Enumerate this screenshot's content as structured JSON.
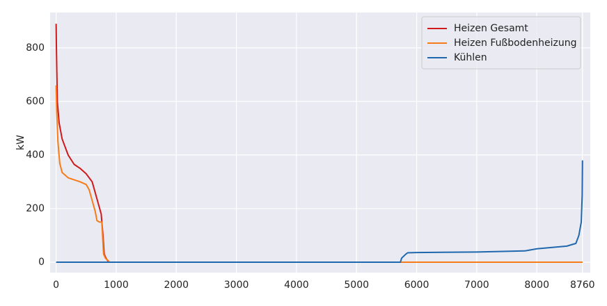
{
  "chart_data": {
    "type": "line",
    "ylabel": "kW",
    "xlim": [
      -100,
      8890
    ],
    "ylim": [
      -39,
      932
    ],
    "xticks": [
      0,
      1000,
      2000,
      3000,
      4000,
      5000,
      6000,
      7000,
      8000,
      8760
    ],
    "yticks": [
      0,
      200,
      400,
      600,
      800
    ],
    "grid": true,
    "legend": "upper right",
    "series": [
      {
        "name": "Heizen Gesamt",
        "color": "#d0191a",
        "x": [
          0,
          5,
          20,
          50,
          100,
          150,
          200,
          300,
          400,
          500,
          600,
          650,
          700,
          750,
          780,
          800,
          830,
          860,
          880,
          8760
        ],
        "values": [
          890,
          800,
          600,
          520,
          460,
          430,
          400,
          365,
          350,
          330,
          300,
          260,
          220,
          180,
          100,
          30,
          15,
          5,
          0,
          0
        ]
      },
      {
        "name": "Heizen Fußbodenheizung",
        "color": "#f77b18",
        "x": [
          0,
          10,
          30,
          60,
          100,
          200,
          400,
          500,
          550,
          600,
          650,
          680,
          720,
          760,
          790,
          820,
          870,
          880,
          8760
        ],
        "values": [
          660,
          560,
          450,
          370,
          335,
          315,
          300,
          290,
          270,
          230,
          190,
          155,
          150,
          150,
          30,
          15,
          5,
          0,
          0
        ]
      },
      {
        "name": "Kühlen",
        "color": "#1f68ad",
        "x": [
          0,
          5730,
          5750,
          5820,
          5850,
          6000,
          7000,
          7800,
          8000,
          8500,
          8650,
          8700,
          8740,
          8755,
          8760
        ],
        "values": [
          0,
          0,
          15,
          30,
          35,
          36,
          38,
          42,
          50,
          60,
          70,
          100,
          150,
          250,
          380
        ]
      }
    ]
  }
}
